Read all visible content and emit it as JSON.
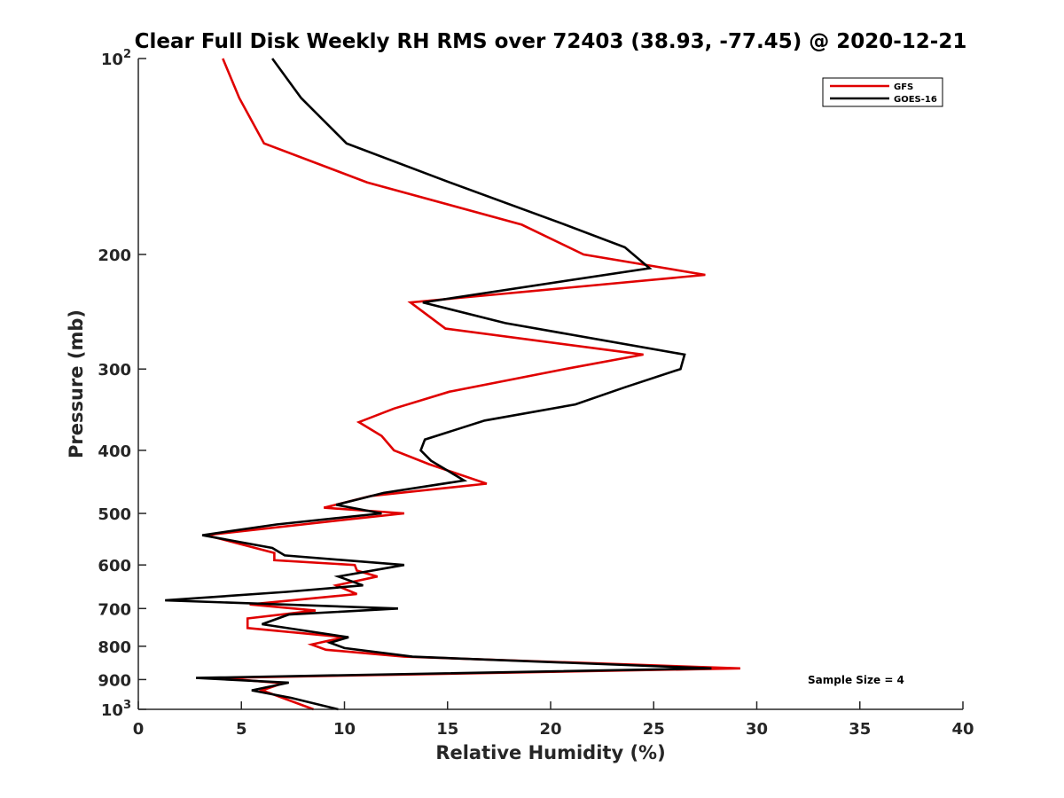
{
  "chart_data": {
    "type": "line",
    "title": "Clear Full Disk Weekly RH RMS over 72403 (38.93, -77.45) @ 2020-12-21",
    "xlabel": "Relative Humidity (%)",
    "ylabel": "Pressure (mb)",
    "xlim": [
      0,
      40
    ],
    "ylim": [
      100,
      1000
    ],
    "y_scale": "log",
    "y_reversed": true,
    "x_ticks": [
      0,
      5,
      10,
      15,
      20,
      25,
      30,
      35,
      40
    ],
    "x_tick_labels": [
      "0",
      "5",
      "10",
      "15",
      "20",
      "25",
      "30",
      "35",
      "40"
    ],
    "y_ticks": [
      100,
      200,
      300,
      400,
      500,
      600,
      700,
      800,
      900,
      1000
    ],
    "y_tick_labels": [
      {
        "base": "10",
        "exp": "2"
      },
      {
        "base": "200",
        "exp": ""
      },
      {
        "base": "300",
        "exp": ""
      },
      {
        "base": "400",
        "exp": ""
      },
      {
        "base": "500",
        "exp": ""
      },
      {
        "base": "600",
        "exp": ""
      },
      {
        "base": "700",
        "exp": ""
      },
      {
        "base": "800",
        "exp": ""
      },
      {
        "base": "900",
        "exp": ""
      },
      {
        "base": "10",
        "exp": "3"
      }
    ],
    "grid": false,
    "legend_position": "top-right",
    "annotation": "Sample Size = 4",
    "series": [
      {
        "name": "GFS",
        "color": "#e00000",
        "points": [
          [
            4.1,
            100
          ],
          [
            4.9,
            115
          ],
          [
            6.1,
            135
          ],
          [
            11.1,
            155
          ],
          [
            18.6,
            180
          ],
          [
            21.6,
            200
          ],
          [
            27.5,
            215
          ],
          [
            13.2,
            237
          ],
          [
            14.9,
            260
          ],
          [
            24.5,
            285
          ],
          [
            20.7,
            300
          ],
          [
            15.1,
            325
          ],
          [
            12.4,
            345
          ],
          [
            10.7,
            362
          ],
          [
            11.8,
            380
          ],
          [
            12.4,
            400
          ],
          [
            14.1,
            420
          ],
          [
            16.9,
            450
          ],
          [
            11.3,
            470
          ],
          [
            9.0,
            490
          ],
          [
            12.9,
            500
          ],
          [
            10.3,
            510
          ],
          [
            3.3,
            540
          ],
          [
            6.6,
            575
          ],
          [
            6.6,
            590
          ],
          [
            10.5,
            600
          ],
          [
            10.6,
            612
          ],
          [
            11.6,
            625
          ],
          [
            9.6,
            645
          ],
          [
            10.6,
            665
          ],
          [
            5.4,
            690
          ],
          [
            8.6,
            705
          ],
          [
            5.3,
            725
          ],
          [
            5.3,
            750
          ],
          [
            10.0,
            775
          ],
          [
            8.4,
            795
          ],
          [
            9.1,
            810
          ],
          [
            12.9,
            830
          ],
          [
            29.2,
            865
          ],
          [
            3.9,
            895
          ],
          [
            7.0,
            912
          ],
          [
            6.0,
            935
          ],
          [
            6.6,
            950
          ],
          [
            8.5,
            1000
          ]
        ]
      },
      {
        "name": "GOES-16",
        "color": "#000000",
        "points": [
          [
            6.5,
            100
          ],
          [
            7.9,
            115
          ],
          [
            10.1,
            135
          ],
          [
            15.1,
            155
          ],
          [
            20.7,
            180
          ],
          [
            23.6,
            195
          ],
          [
            24.8,
            210
          ],
          [
            13.8,
            237
          ],
          [
            17.8,
            255
          ],
          [
            26.5,
            285
          ],
          [
            26.3,
            300
          ],
          [
            23.6,
            320
          ],
          [
            21.2,
            340
          ],
          [
            16.8,
            360
          ],
          [
            13.9,
            385
          ],
          [
            13.7,
            400
          ],
          [
            14.2,
            415
          ],
          [
            15.8,
            445
          ],
          [
            11.9,
            465
          ],
          [
            9.6,
            485
          ],
          [
            11.8,
            500
          ],
          [
            6.7,
            520
          ],
          [
            3.1,
            540
          ],
          [
            6.5,
            565
          ],
          [
            7.1,
            580
          ],
          [
            12.9,
            600
          ],
          [
            9.7,
            625
          ],
          [
            10.9,
            645
          ],
          [
            7.2,
            660
          ],
          [
            1.3,
            680
          ],
          [
            12.6,
            700
          ],
          [
            7.3,
            715
          ],
          [
            6.0,
            740
          ],
          [
            10.2,
            775
          ],
          [
            9.3,
            790
          ],
          [
            10.0,
            805
          ],
          [
            13.3,
            830
          ],
          [
            27.8,
            865
          ],
          [
            2.8,
            895
          ],
          [
            7.3,
            910
          ],
          [
            5.5,
            935
          ],
          [
            7.4,
            960
          ],
          [
            9.7,
            1000
          ]
        ]
      }
    ]
  }
}
